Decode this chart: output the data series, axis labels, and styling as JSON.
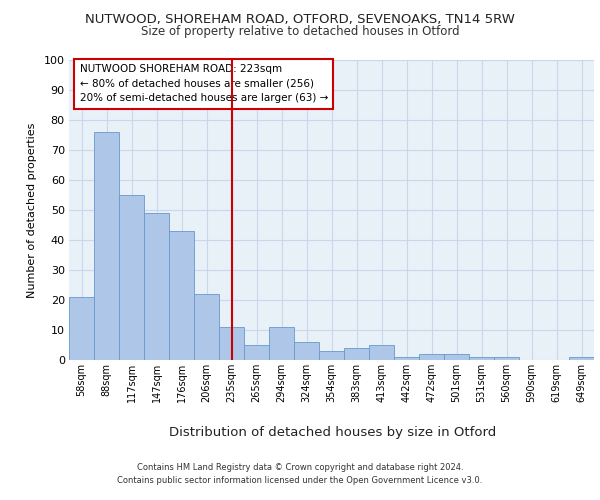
{
  "title1": "NUTWOOD, SHOREHAM ROAD, OTFORD, SEVENOAKS, TN14 5RW",
  "title2": "Size of property relative to detached houses in Otford",
  "xlabel": "Distribution of detached houses by size in Otford",
  "ylabel": "Number of detached properties",
  "categories": [
    "58sqm",
    "88sqm",
    "117sqm",
    "147sqm",
    "176sqm",
    "206sqm",
    "235sqm",
    "265sqm",
    "294sqm",
    "324sqm",
    "354sqm",
    "383sqm",
    "413sqm",
    "442sqm",
    "472sqm",
    "501sqm",
    "531sqm",
    "560sqm",
    "590sqm",
    "619sqm",
    "649sqm"
  ],
  "values": [
    21,
    76,
    55,
    49,
    43,
    22,
    11,
    5,
    11,
    6,
    3,
    4,
    5,
    1,
    2,
    2,
    1,
    1,
    0,
    0,
    1
  ],
  "bar_color": "#aec6e8",
  "bar_edge_color": "#6699cc",
  "grid_color": "#c8d8ea",
  "background_color": "#e8f0f8",
  "vline_x": 6,
  "annotation_text_line1": "NUTWOOD SHOREHAM ROAD: 223sqm",
  "annotation_text_line2": "← 80% of detached houses are smaller (256)",
  "annotation_text_line3": "20% of semi-detached houses are larger (63) →",
  "annotation_box_color": "#ffffff",
  "annotation_box_edge": "#cc0000",
  "vline_color": "#cc0000",
  "footer1": "Contains HM Land Registry data © Crown copyright and database right 2024.",
  "footer2": "Contains public sector information licensed under the Open Government Licence v3.0.",
  "ylim": [
    0,
    100
  ],
  "yticks": [
    0,
    10,
    20,
    30,
    40,
    50,
    60,
    70,
    80,
    90,
    100
  ]
}
